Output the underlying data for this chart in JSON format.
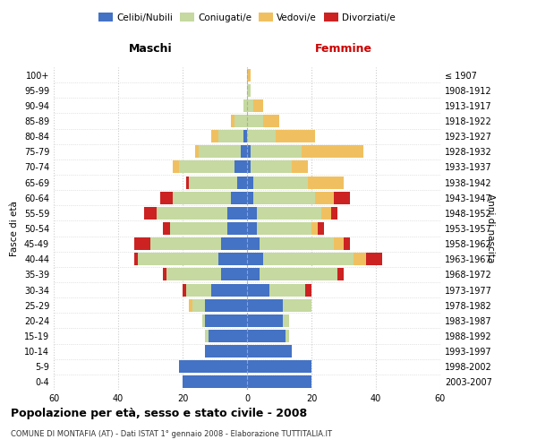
{
  "age_groups": [
    "0-4",
    "5-9",
    "10-14",
    "15-19",
    "20-24",
    "25-29",
    "30-34",
    "35-39",
    "40-44",
    "45-49",
    "50-54",
    "55-59",
    "60-64",
    "65-69",
    "70-74",
    "75-79",
    "80-84",
    "85-89",
    "90-94",
    "95-99",
    "100+"
  ],
  "birth_years": [
    "2003-2007",
    "1998-2002",
    "1993-1997",
    "1988-1992",
    "1983-1987",
    "1978-1982",
    "1973-1977",
    "1968-1972",
    "1963-1967",
    "1958-1962",
    "1953-1957",
    "1948-1952",
    "1943-1947",
    "1938-1942",
    "1933-1937",
    "1928-1932",
    "1923-1927",
    "1918-1922",
    "1913-1917",
    "1908-1912",
    "≤ 1907"
  ],
  "colors": {
    "celibe": "#4472c4",
    "coniugato": "#c5d9a0",
    "vedovo": "#f0c060",
    "divorziato": "#cc2222"
  },
  "maschi": {
    "celibe": [
      20,
      21,
      13,
      12,
      13,
      13,
      11,
      8,
      9,
      8,
      6,
      6,
      5,
      3,
      4,
      2,
      1,
      0,
      0,
      0,
      0
    ],
    "coniugato": [
      0,
      0,
      0,
      1,
      1,
      4,
      8,
      17,
      25,
      22,
      18,
      22,
      18,
      15,
      17,
      13,
      8,
      4,
      1,
      0,
      0
    ],
    "vedovo": [
      0,
      0,
      0,
      0,
      0,
      1,
      0,
      0,
      0,
      0,
      0,
      0,
      0,
      0,
      2,
      1,
      2,
      1,
      0,
      0,
      0
    ],
    "divorziato": [
      0,
      0,
      0,
      0,
      0,
      0,
      1,
      1,
      1,
      5,
      2,
      4,
      4,
      1,
      0,
      0,
      0,
      0,
      0,
      0,
      0
    ]
  },
  "femmine": {
    "nubile": [
      20,
      20,
      14,
      12,
      11,
      11,
      7,
      4,
      5,
      4,
      3,
      3,
      2,
      2,
      1,
      1,
      0,
      0,
      0,
      0,
      0
    ],
    "coniugata": [
      0,
      0,
      0,
      1,
      2,
      9,
      11,
      24,
      28,
      23,
      17,
      20,
      19,
      17,
      13,
      16,
      9,
      5,
      2,
      1,
      0
    ],
    "vedova": [
      0,
      0,
      0,
      0,
      0,
      0,
      0,
      0,
      4,
      3,
      2,
      3,
      6,
      11,
      5,
      19,
      12,
      5,
      3,
      0,
      1
    ],
    "divorziata": [
      0,
      0,
      0,
      0,
      0,
      0,
      2,
      2,
      5,
      2,
      2,
      2,
      5,
      0,
      0,
      0,
      0,
      0,
      0,
      0,
      0
    ]
  },
  "xlim": 60,
  "title": "Popolazione per età, sesso e stato civile - 2008",
  "subtitle": "COMUNE DI MONTAFIA (AT) - Dati ISTAT 1° gennaio 2008 - Elaborazione TUTTITALIA.IT",
  "ylabel_left": "Fasce di età",
  "ylabel_right": "Anni di nascita",
  "xlabel_maschi": "Maschi",
  "xlabel_femmine": "Femmine",
  "bg_color": "#ffffff",
  "grid_color": "#cccccc",
  "bar_height": 0.82
}
